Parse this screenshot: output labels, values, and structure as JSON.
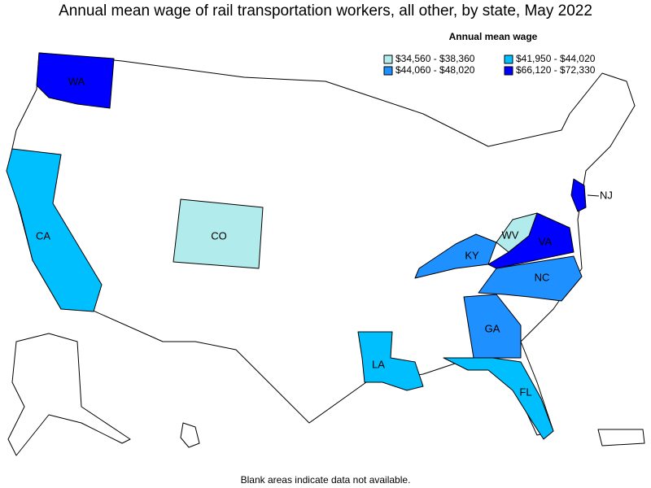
{
  "title": "Annual mean wage of rail transportation workers, all other, by state, May 2022",
  "legend": {
    "title": "Annual mean wage",
    "items": [
      {
        "label": "$34,560 - $38,360",
        "color": "#b2ebeb"
      },
      {
        "label": "$41,950 - $44,020",
        "color": "#00bfff"
      },
      {
        "label": "$44,060 - $48,020",
        "color": "#1e90ff"
      },
      {
        "label": "$66,120 - $72,330",
        "color": "#0000ff"
      }
    ]
  },
  "states": [
    {
      "label": "WA",
      "color": "#0000ff"
    },
    {
      "label": "CA",
      "color": "#00bfff"
    },
    {
      "label": "CO",
      "color": "#b2ebeb"
    },
    {
      "label": "LA",
      "color": "#00bfff"
    },
    {
      "label": "FL",
      "color": "#00bfff"
    },
    {
      "label": "GA",
      "color": "#1e90ff"
    },
    {
      "label": "NC",
      "color": "#1e90ff"
    },
    {
      "label": "KY",
      "color": "#1e90ff"
    },
    {
      "label": "WV",
      "color": "#b2ebeb"
    },
    {
      "label": "VA",
      "color": "#0000ff"
    },
    {
      "label": "NJ",
      "color": "#0000ff"
    }
  ],
  "footnote": "Blank areas indicate data not available."
}
